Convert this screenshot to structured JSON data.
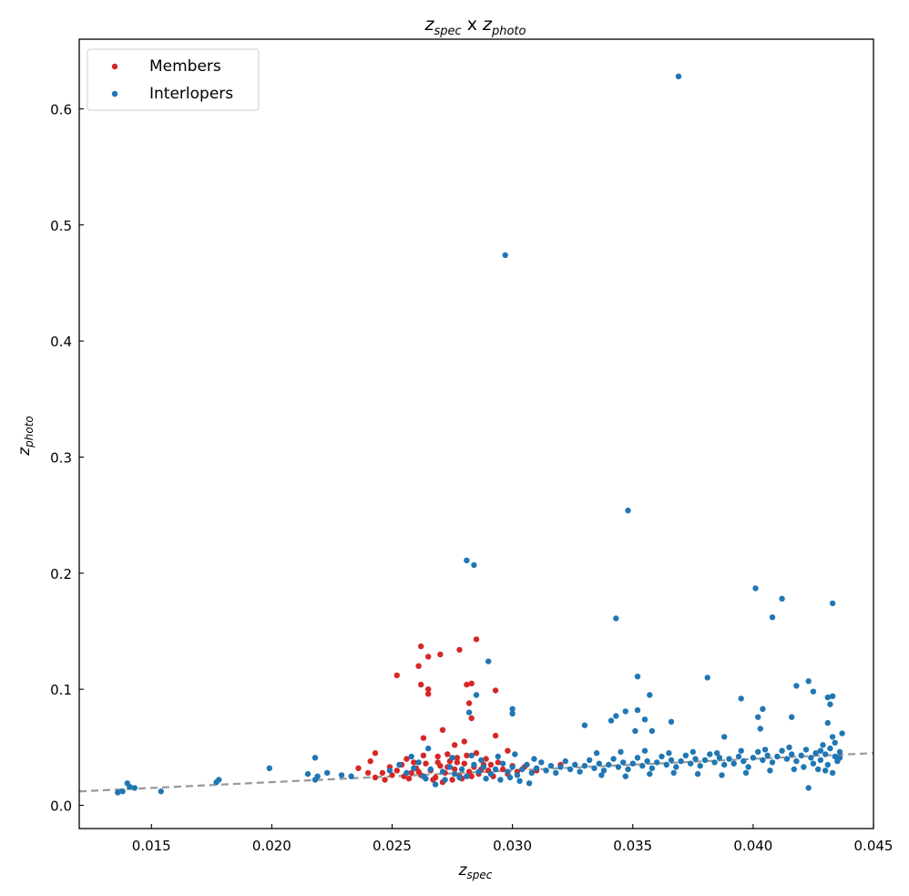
{
  "chart_data": {
    "type": "scatter",
    "title": {
      "main": "z",
      "main_sub": "spec",
      "join": " x ",
      "second": "z",
      "second_sub": "photo"
    },
    "xlabel": {
      "main": "z",
      "sub": "spec"
    },
    "ylabel": {
      "main": "z",
      "sub": "photo"
    },
    "xlim": [
      0.012,
      0.045
    ],
    "ylim": [
      -0.02,
      0.66
    ],
    "xticks": [
      0.015,
      0.02,
      0.025,
      0.03,
      0.035,
      0.04,
      0.045
    ],
    "xtick_labels": [
      "0.015",
      "0.020",
      "0.025",
      "0.030",
      "0.035",
      "0.040",
      "0.045"
    ],
    "yticks": [
      0.0,
      0.1,
      0.2,
      0.3,
      0.4,
      0.5,
      0.6
    ],
    "ytick_labels": [
      "0.0",
      "0.1",
      "0.2",
      "0.3",
      "0.4",
      "0.5",
      "0.6"
    ],
    "grid": false,
    "legend_position": "top-left",
    "reference_line": {
      "type": "y=x",
      "style": "dashed",
      "color": "#999999"
    },
    "series": [
      {
        "name": "Members",
        "color": "#d62728",
        "points": [
          [
            0.0262,
            0.137
          ],
          [
            0.0265,
            0.128
          ],
          [
            0.027,
            0.13
          ],
          [
            0.0278,
            0.134
          ],
          [
            0.0285,
            0.143
          ],
          [
            0.0261,
            0.12
          ],
          [
            0.0252,
            0.112
          ],
          [
            0.0262,
            0.104
          ],
          [
            0.0265,
            0.1
          ],
          [
            0.0265,
            0.096
          ],
          [
            0.0283,
            0.105
          ],
          [
            0.0281,
            0.104
          ],
          [
            0.0293,
            0.099
          ],
          [
            0.0282,
            0.088
          ],
          [
            0.0283,
            0.075
          ],
          [
            0.0271,
            0.065
          ],
          [
            0.028,
            0.055
          ],
          [
            0.0293,
            0.06
          ],
          [
            0.0263,
            0.058
          ],
          [
            0.0276,
            0.052
          ],
          [
            0.0298,
            0.047
          ],
          [
            0.0243,
            0.045
          ],
          [
            0.0241,
            0.038
          ],
          [
            0.0236,
            0.032
          ],
          [
            0.024,
            0.028
          ],
          [
            0.0243,
            0.024
          ],
          [
            0.0247,
            0.022
          ],
          [
            0.025,
            0.026
          ],
          [
            0.0252,
            0.03
          ],
          [
            0.0254,
            0.035
          ],
          [
            0.0256,
            0.04
          ],
          [
            0.0258,
            0.028
          ],
          [
            0.026,
            0.032
          ],
          [
            0.0262,
            0.026
          ],
          [
            0.0264,
            0.036
          ],
          [
            0.0266,
            0.03
          ],
          [
            0.0268,
            0.024
          ],
          [
            0.027,
            0.034
          ],
          [
            0.0272,
            0.028
          ],
          [
            0.0274,
            0.038
          ],
          [
            0.0276,
            0.031
          ],
          [
            0.0278,
            0.025
          ],
          [
            0.028,
            0.036
          ],
          [
            0.0282,
            0.029
          ],
          [
            0.0284,
            0.033
          ],
          [
            0.0286,
            0.027
          ],
          [
            0.0288,
            0.035
          ],
          [
            0.029,
            0.03
          ],
          [
            0.0292,
            0.025
          ],
          [
            0.0294,
            0.037
          ],
          [
            0.0296,
            0.031
          ],
          [
            0.0298,
            0.027
          ],
          [
            0.03,
            0.034
          ],
          [
            0.0302,
            0.029
          ],
          [
            0.0305,
            0.033
          ],
          [
            0.031,
            0.03
          ],
          [
            0.032,
            0.035
          ],
          [
            0.0267,
            0.022
          ],
          [
            0.0271,
            0.02
          ],
          [
            0.0275,
            0.022
          ],
          [
            0.0279,
            0.023
          ],
          [
            0.0283,
            0.025
          ],
          [
            0.0269,
            0.042
          ],
          [
            0.0273,
            0.044
          ],
          [
            0.0277,
            0.041
          ],
          [
            0.0281,
            0.043
          ],
          [
            0.0285,
            0.045
          ],
          [
            0.0289,
            0.04
          ],
          [
            0.0257,
            0.023
          ],
          [
            0.0263,
            0.043
          ],
          [
            0.0261,
            0.029
          ],
          [
            0.0269,
            0.037
          ],
          [
            0.0273,
            0.033
          ],
          [
            0.0277,
            0.037
          ],
          [
            0.0287,
            0.031
          ],
          [
            0.0291,
            0.035
          ],
          [
            0.0249,
            0.033
          ],
          [
            0.0246,
            0.028
          ],
          [
            0.0255,
            0.025
          ],
          [
            0.0259,
            0.037
          ]
        ]
      },
      {
        "name": "Interlopers",
        "color": "#1f77b4",
        "points": [
          [
            0.0369,
            0.628
          ],
          [
            0.0297,
            0.474
          ],
          [
            0.0348,
            0.254
          ],
          [
            0.0281,
            0.211
          ],
          [
            0.0284,
            0.207
          ],
          [
            0.0401,
            0.187
          ],
          [
            0.0412,
            0.178
          ],
          [
            0.0433,
            0.174
          ],
          [
            0.0408,
            0.162
          ],
          [
            0.0343,
            0.161
          ],
          [
            0.029,
            0.124
          ],
          [
            0.0352,
            0.111
          ],
          [
            0.0381,
            0.11
          ],
          [
            0.0423,
            0.107
          ],
          [
            0.0418,
            0.103
          ],
          [
            0.0425,
            0.098
          ],
          [
            0.0357,
            0.095
          ],
          [
            0.0431,
            0.093
          ],
          [
            0.0433,
            0.094
          ],
          [
            0.0395,
            0.092
          ],
          [
            0.0432,
            0.087
          ],
          [
            0.0404,
            0.083
          ],
          [
            0.03,
            0.083
          ],
          [
            0.0352,
            0.082
          ],
          [
            0.0347,
            0.081
          ],
          [
            0.0282,
            0.08
          ],
          [
            0.03,
            0.079
          ],
          [
            0.0343,
            0.077
          ],
          [
            0.0402,
            0.076
          ],
          [
            0.0416,
            0.076
          ],
          [
            0.0355,
            0.074
          ],
          [
            0.0341,
            0.073
          ],
          [
            0.0366,
            0.072
          ],
          [
            0.033,
            0.069
          ],
          [
            0.0431,
            0.071
          ],
          [
            0.0403,
            0.066
          ],
          [
            0.0351,
            0.064
          ],
          [
            0.0358,
            0.064
          ],
          [
            0.0388,
            0.059
          ],
          [
            0.0433,
            0.059
          ],
          [
            0.0285,
            0.095
          ],
          [
            0.0218,
            0.041
          ],
          [
            0.0265,
            0.049
          ],
          [
            0.014,
            0.019
          ],
          [
            0.0141,
            0.016
          ],
          [
            0.0138,
            0.012
          ],
          [
            0.0136,
            0.011
          ],
          [
            0.0143,
            0.015
          ],
          [
            0.0154,
            0.012
          ],
          [
            0.0177,
            0.02
          ],
          [
            0.0178,
            0.022
          ],
          [
            0.0199,
            0.032
          ],
          [
            0.0215,
            0.027
          ],
          [
            0.0218,
            0.022
          ],
          [
            0.0219,
            0.025
          ],
          [
            0.0223,
            0.028
          ],
          [
            0.0229,
            0.026
          ],
          [
            0.0233,
            0.025
          ],
          [
            0.0437,
            0.062
          ],
          [
            0.0423,
            0.015
          ],
          [
            0.0249,
            0.03
          ],
          [
            0.0253,
            0.035
          ],
          [
            0.0256,
            0.028
          ],
          [
            0.0259,
            0.032
          ],
          [
            0.0261,
            0.037
          ],
          [
            0.0263,
            0.025
          ],
          [
            0.0266,
            0.031
          ],
          [
            0.0268,
            0.018
          ],
          [
            0.0271,
            0.029
          ],
          [
            0.0274,
            0.033
          ],
          [
            0.0276,
            0.027
          ],
          [
            0.0279,
            0.031
          ],
          [
            0.0281,
            0.025
          ],
          [
            0.0284,
            0.035
          ],
          [
            0.0286,
            0.029
          ],
          [
            0.0288,
            0.033
          ],
          [
            0.0291,
            0.027
          ],
          [
            0.0293,
            0.031
          ],
          [
            0.0296,
            0.036
          ],
          [
            0.0298,
            0.029
          ],
          [
            0.03,
            0.033
          ],
          [
            0.0302,
            0.026
          ],
          [
            0.0304,
            0.031
          ],
          [
            0.0306,
            0.035
          ],
          [
            0.0308,
            0.028
          ],
          [
            0.031,
            0.032
          ],
          [
            0.0312,
            0.037
          ],
          [
            0.0314,
            0.03
          ],
          [
            0.0316,
            0.034
          ],
          [
            0.0318,
            0.028
          ],
          [
            0.032,
            0.033
          ],
          [
            0.0322,
            0.038
          ],
          [
            0.0324,
            0.031
          ],
          [
            0.0326,
            0.035
          ],
          [
            0.0328,
            0.029
          ],
          [
            0.033,
            0.034
          ],
          [
            0.0332,
            0.039
          ],
          [
            0.0334,
            0.032
          ],
          [
            0.0336,
            0.036
          ],
          [
            0.0338,
            0.03
          ],
          [
            0.034,
            0.035
          ],
          [
            0.0342,
            0.04
          ],
          [
            0.0344,
            0.033
          ],
          [
            0.0346,
            0.037
          ],
          [
            0.0348,
            0.031
          ],
          [
            0.035,
            0.036
          ],
          [
            0.0352,
            0.041
          ],
          [
            0.0354,
            0.034
          ],
          [
            0.0356,
            0.038
          ],
          [
            0.0358,
            0.032
          ],
          [
            0.036,
            0.037
          ],
          [
            0.0362,
            0.042
          ],
          [
            0.0364,
            0.035
          ],
          [
            0.0366,
            0.039
          ],
          [
            0.0368,
            0.033
          ],
          [
            0.037,
            0.038
          ],
          [
            0.0372,
            0.043
          ],
          [
            0.0374,
            0.036
          ],
          [
            0.0376,
            0.04
          ],
          [
            0.0378,
            0.034
          ],
          [
            0.038,
            0.039
          ],
          [
            0.0382,
            0.044
          ],
          [
            0.0384,
            0.037
          ],
          [
            0.0386,
            0.041
          ],
          [
            0.0388,
            0.035
          ],
          [
            0.039,
            0.04
          ],
          [
            0.0392,
            0.036
          ],
          [
            0.0394,
            0.042
          ],
          [
            0.0396,
            0.038
          ],
          [
            0.0398,
            0.033
          ],
          [
            0.04,
            0.041
          ],
          [
            0.0402,
            0.046
          ],
          [
            0.0404,
            0.039
          ],
          [
            0.0406,
            0.043
          ],
          [
            0.0408,
            0.037
          ],
          [
            0.041,
            0.042
          ],
          [
            0.0412,
            0.047
          ],
          [
            0.0414,
            0.04
          ],
          [
            0.0416,
            0.044
          ],
          [
            0.0418,
            0.038
          ],
          [
            0.042,
            0.043
          ],
          [
            0.0422,
            0.048
          ],
          [
            0.0424,
            0.041
          ],
          [
            0.0426,
            0.045
          ],
          [
            0.0428,
            0.039
          ],
          [
            0.043,
            0.044
          ],
          [
            0.0432,
            0.049
          ],
          [
            0.0434,
            0.042
          ],
          [
            0.0436,
            0.046
          ],
          [
            0.0435,
            0.038
          ],
          [
            0.0431,
            0.035
          ],
          [
            0.0427,
            0.031
          ],
          [
            0.0433,
            0.028
          ],
          [
            0.0429,
            0.052
          ],
          [
            0.0425,
            0.036
          ],
          [
            0.0421,
            0.033
          ],
          [
            0.0434,
            0.054
          ],
          [
            0.043,
            0.03
          ],
          [
            0.0436,
            0.041
          ],
          [
            0.0428,
            0.047
          ],
          [
            0.0272,
            0.022
          ],
          [
            0.0278,
            0.024
          ],
          [
            0.0289,
            0.023
          ],
          [
            0.0295,
            0.022
          ],
          [
            0.0303,
            0.021
          ],
          [
            0.0307,
            0.019
          ],
          [
            0.0275,
            0.041
          ],
          [
            0.0283,
            0.043
          ],
          [
            0.0294,
            0.042
          ],
          [
            0.0301,
            0.044
          ],
          [
            0.0309,
            0.04
          ],
          [
            0.0258,
            0.042
          ],
          [
            0.0264,
            0.023
          ],
          [
            0.0287,
            0.039
          ],
          [
            0.0299,
            0.024
          ],
          [
            0.0335,
            0.045
          ],
          [
            0.0345,
            0.046
          ],
          [
            0.0355,
            0.047
          ],
          [
            0.0365,
            0.045
          ],
          [
            0.0375,
            0.046
          ],
          [
            0.0385,
            0.045
          ],
          [
            0.0395,
            0.047
          ],
          [
            0.0405,
            0.048
          ],
          [
            0.0415,
            0.05
          ],
          [
            0.0337,
            0.026
          ],
          [
            0.0347,
            0.025
          ],
          [
            0.0357,
            0.027
          ],
          [
            0.0367,
            0.028
          ],
          [
            0.0377,
            0.027
          ],
          [
            0.0387,
            0.026
          ],
          [
            0.0397,
            0.028
          ],
          [
            0.0407,
            0.03
          ],
          [
            0.0417,
            0.031
          ]
        ]
      }
    ]
  }
}
